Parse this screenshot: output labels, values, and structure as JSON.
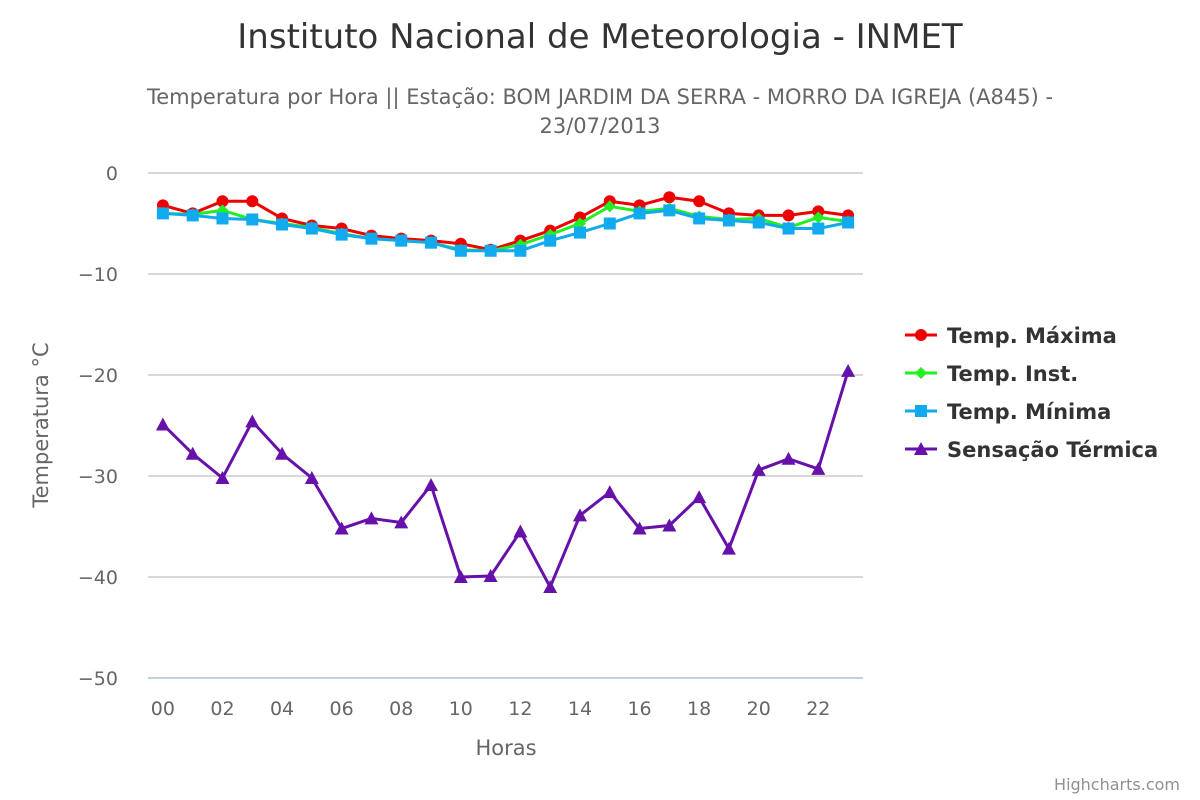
{
  "chart_data": {
    "type": "line",
    "title": "Instituto Nacional de Meteorologia - INMET",
    "subtitle_lines": [
      "Temperatura por Hora || Estação: BOM JARDIM DA SERRA - MORRO DA IGREJA (A845) -",
      "23/07/2013"
    ],
    "xlabel": "Horas",
    "ylabel": "Temperatura °C",
    "categories": [
      "00",
      "01",
      "02",
      "03",
      "04",
      "05",
      "06",
      "07",
      "08",
      "09",
      "10",
      "11",
      "12",
      "13",
      "14",
      "15",
      "16",
      "17",
      "18",
      "19",
      "20",
      "21",
      "22",
      "23"
    ],
    "x_tick_labels": [
      "00",
      "02",
      "04",
      "06",
      "08",
      "10",
      "12",
      "14",
      "16",
      "18",
      "20",
      "22"
    ],
    "ylim": [
      -50,
      0
    ],
    "y_ticks": [
      0,
      -10,
      -20,
      -30,
      -40,
      -50
    ],
    "grid": true,
    "legend_position": "right",
    "series": [
      {
        "name": "Temp. Máxima",
        "color": "#ee0000",
        "marker": "circle",
        "values": [
          -3.2,
          -4.0,
          -2.8,
          -2.8,
          -4.5,
          -5.2,
          -5.5,
          -6.2,
          -6.5,
          -6.7,
          -7.0,
          -7.6,
          -6.7,
          -5.7,
          -4.4,
          -2.8,
          -3.2,
          -2.4,
          -2.8,
          -4.0,
          -4.2,
          -4.2,
          -3.8,
          -4.2
        ]
      },
      {
        "name": "Temp. Inst.",
        "color": "#22ee22",
        "marker": "diamond",
        "values": [
          -4.0,
          -4.1,
          -3.7,
          -4.6,
          -5.0,
          -5.4,
          -6.0,
          -6.5,
          -6.7,
          -6.9,
          -7.6,
          -7.7,
          -7.1,
          -6.1,
          -5.0,
          -3.3,
          -3.8,
          -3.5,
          -4.3,
          -4.6,
          -4.5,
          -5.4,
          -4.4,
          -4.8
        ]
      },
      {
        "name": "Temp. Mínima",
        "color": "#11aaee",
        "marker": "square",
        "values": [
          -4.0,
          -4.2,
          -4.5,
          -4.6,
          -5.1,
          -5.5,
          -6.1,
          -6.5,
          -6.7,
          -6.9,
          -7.7,
          -7.7,
          -7.7,
          -6.7,
          -5.9,
          -5.0,
          -4.0,
          -3.7,
          -4.5,
          -4.7,
          -4.9,
          -5.5,
          -5.5,
          -4.9
        ]
      },
      {
        "name": "Sensação Térmica",
        "color": "#6611aa",
        "marker": "triangle",
        "values": [
          -24.9,
          -27.8,
          -30.2,
          -24.6,
          -27.8,
          -30.2,
          -35.2,
          -34.2,
          -34.6,
          -30.9,
          -40.0,
          -39.9,
          -35.5,
          -41.0,
          -33.9,
          -31.6,
          -35.2,
          -34.9,
          -32.1,
          -37.2,
          -29.4,
          -28.3,
          -29.3,
          -19.6
        ]
      }
    ]
  },
  "credits": "Highcharts.com"
}
